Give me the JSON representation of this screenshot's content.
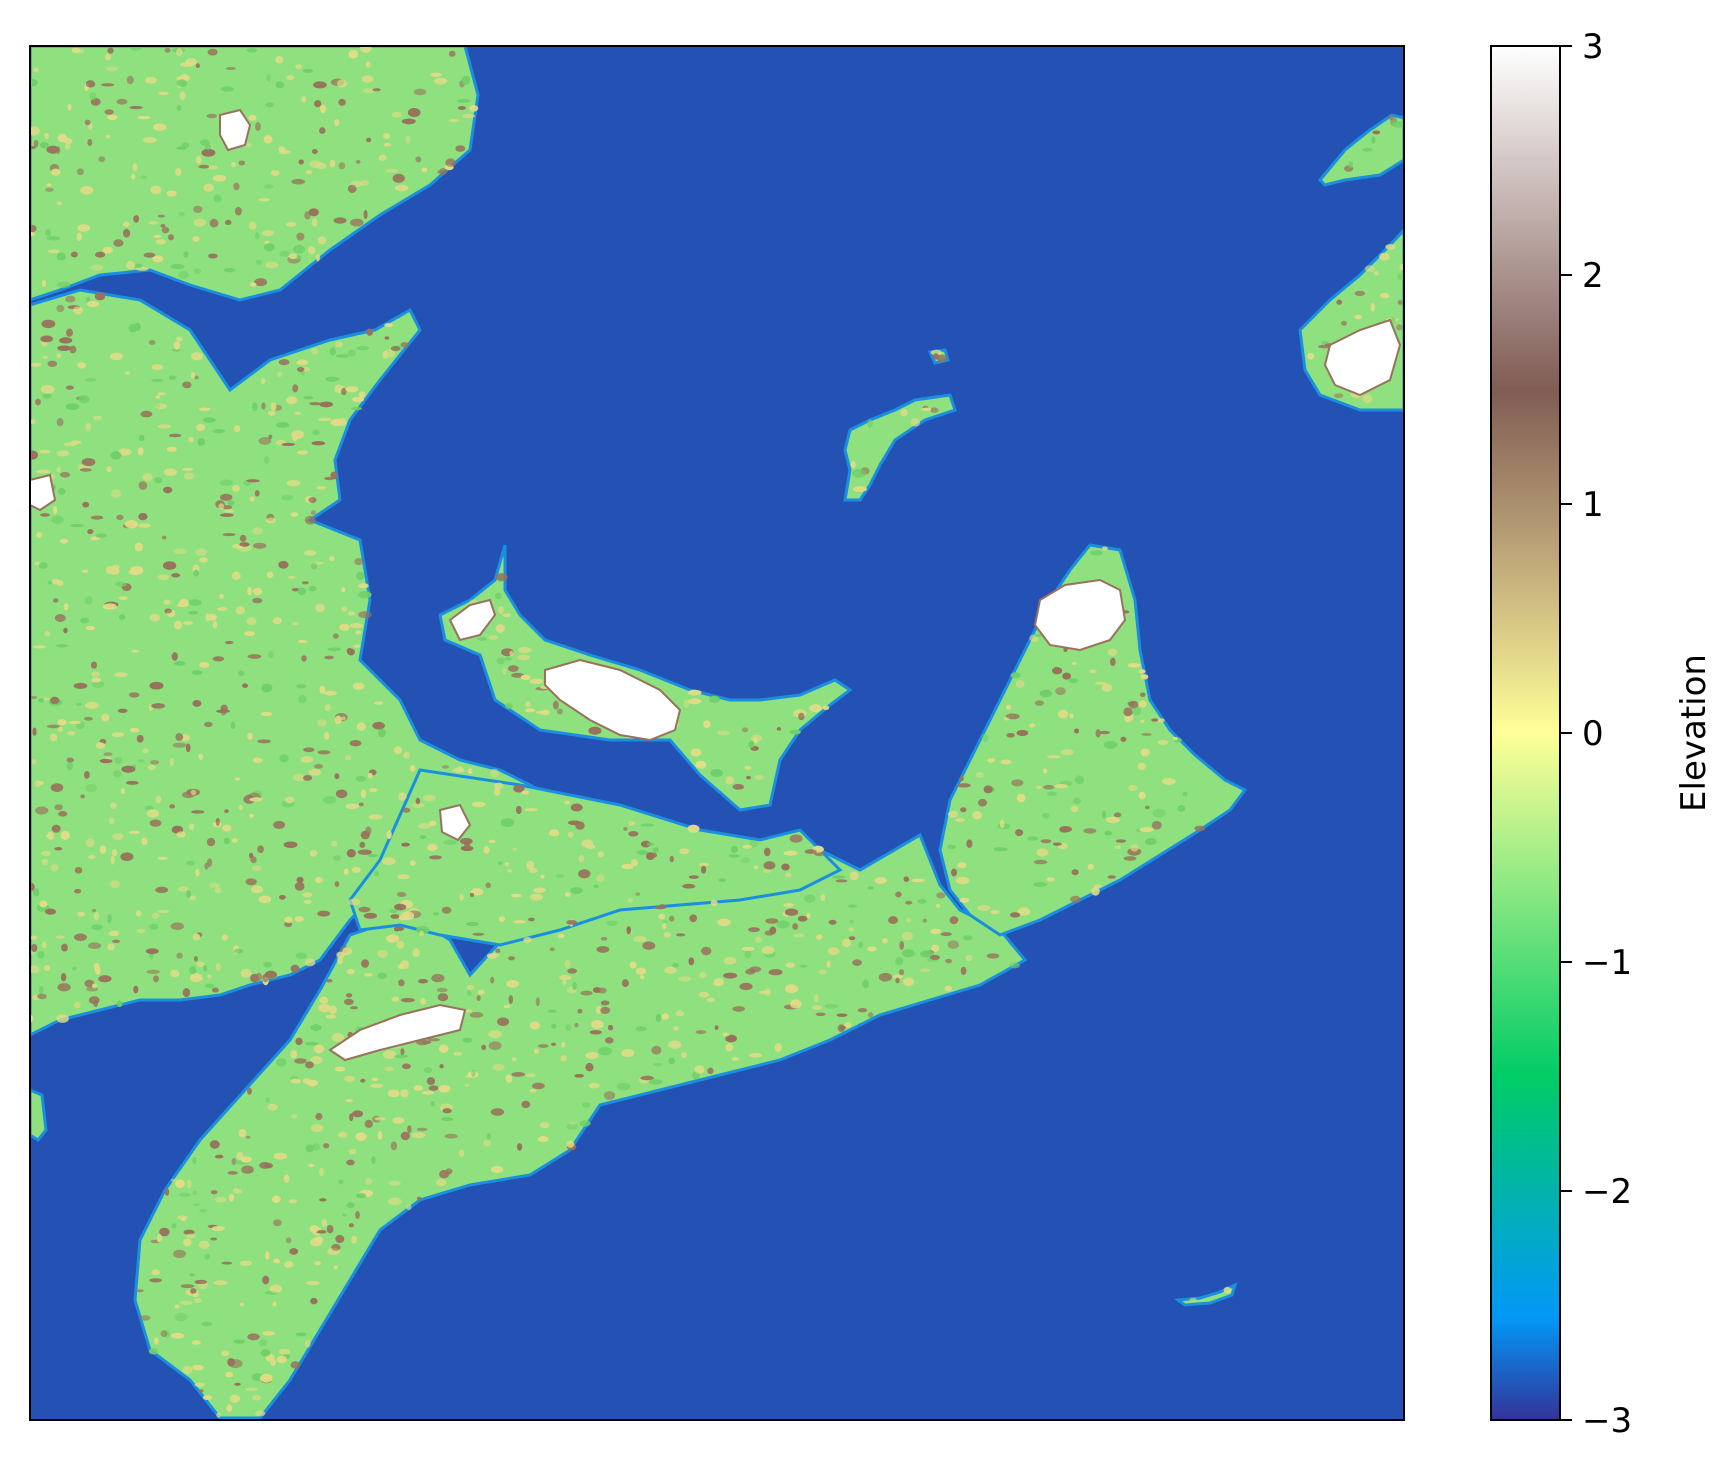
{
  "colorbar": {
    "label": "Elevation",
    "ticks": [
      "3",
      "2",
      "1",
      "0",
      "−1",
      "−2",
      "−3"
    ],
    "tick_values": [
      3,
      2,
      1,
      0,
      -1,
      -2,
      -3
    ],
    "range": [
      -3,
      3
    ],
    "colormap": "terrain",
    "stops": [
      {
        "value": -3.0,
        "color": "#333399"
      },
      {
        "value": -2.55,
        "color": "#0298f7"
      },
      {
        "value": -1.5,
        "color": "#01cc66"
      },
      {
        "value": -0.6,
        "color": "#99eb85"
      },
      {
        "value": 0.0,
        "color": "#ffff99"
      },
      {
        "value": 0.75,
        "color": "#c0a97a"
      },
      {
        "value": 1.5,
        "color": "#805c54"
      },
      {
        "value": 2.25,
        "color": "#bfadaa"
      },
      {
        "value": 3.0,
        "color": "#ffffff"
      }
    ]
  },
  "map": {
    "water_color": "#2452b4",
    "land_low_color": "#8fe07e",
    "land_mid_color": "#e0dc86",
    "highland_color": "#98725c",
    "peak_color": "#ffffff",
    "coast_color": "#1a8fe0"
  }
}
